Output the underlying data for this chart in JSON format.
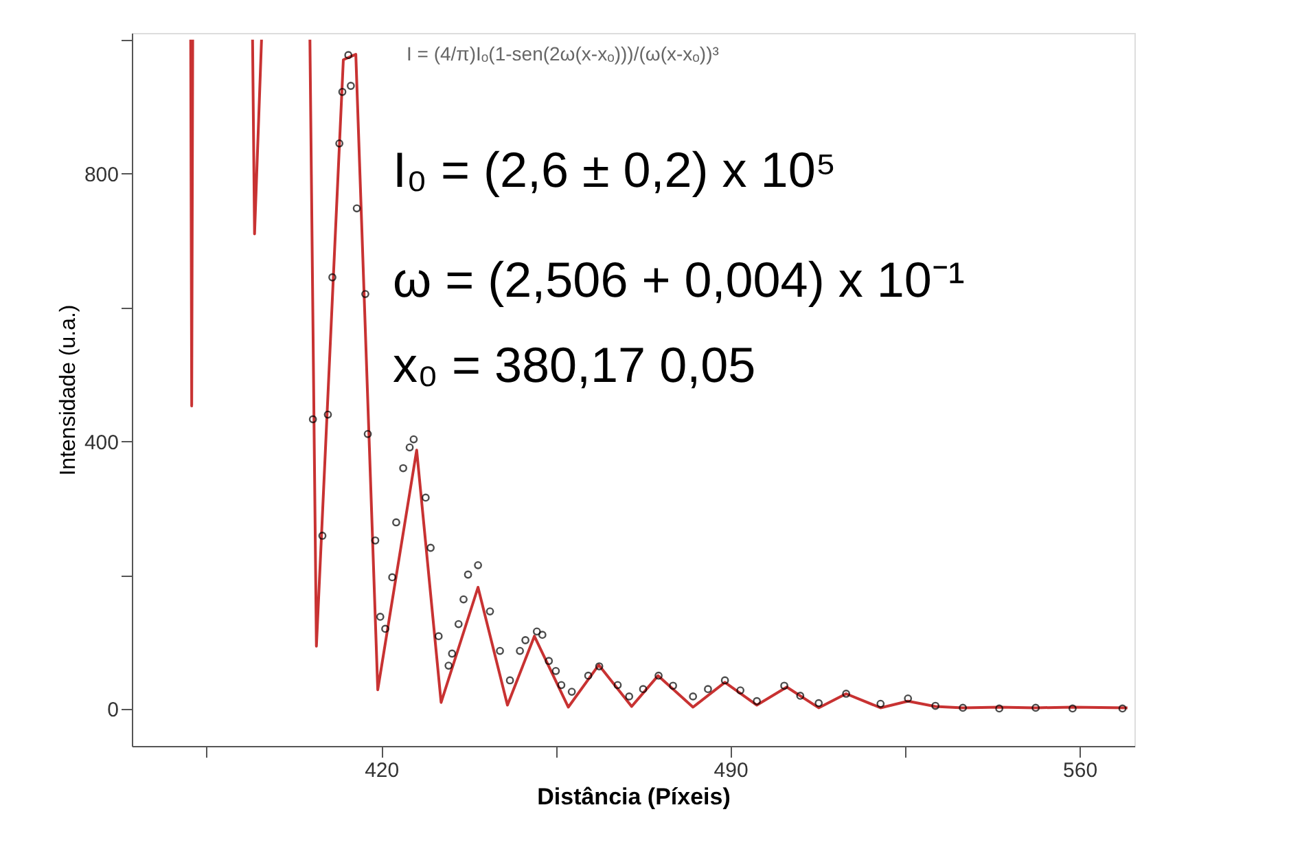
{
  "chart_data": {
    "type": "scatter",
    "xlabel": "Distância (Píxeis)",
    "ylabel": "Intensidade (u.a.)",
    "xlim": [
      370,
      571
    ],
    "ylim": [
      -55,
      1010
    ],
    "xticks": [
      {
        "value": 385,
        "label": null
      },
      420,
      {
        "value": 455,
        "label": null
      },
      490,
      {
        "value": 525,
        "label": null
      },
      560
    ],
    "yticks": [
      0,
      {
        "value": 200,
        "label": null
      },
      400,
      {
        "value": 600,
        "label": null
      },
      800,
      {
        "value": 1000,
        "label": null
      }
    ],
    "grid": false,
    "annotations": [
      "I = (4/π)Iₒ(1-sen(2ω(x-xₒ)))/(ω(x-xₒ))³",
      "I₀ = (2,6 ± 0,2) x 10⁵",
      "ω = (2,506 + 0,004) x 10⁻¹",
      "x₀ = 380,17  0,05"
    ],
    "series": [
      {
        "type": "line",
        "color": "#c83232",
        "line_style": "solid",
        "x": [
          381.8,
          382.0,
          382.2
        ],
        "values": [
          1000,
          453,
          1000
        ]
      },
      {
        "type": "line",
        "color": "#c83232",
        "line_style": "solid",
        "x": [
          394.2,
          394.6,
          396.0
        ],
        "values": [
          1000,
          710,
          1000
        ]
      },
      {
        "type": "line",
        "color": "#c83232",
        "line_style": "solid",
        "x": [
          405.7,
          407.0,
          412.4,
          414.9,
          419.3,
          427.1,
          432.0,
          439.4,
          445.3,
          450.7,
          457.5,
          463.6,
          470.2,
          475.5,
          482.5,
          488.9,
          495.3,
          501.3,
          507.7,
          513.2,
          520.1,
          525.6,
          531.1,
          536.6,
          543.9,
          551.2,
          558.6,
          569.6
        ],
        "values": [
          1000,
          94,
          970,
          978,
          29,
          387,
          10,
          182,
          6,
          109,
          3,
          66,
          4,
          50,
          3,
          40,
          6,
          33,
          2,
          23,
          2,
          12,
          4,
          2,
          3,
          2,
          3,
          2
        ]
      },
      {
        "type": "scatter",
        "color": "#000000",
        "marker": "circle",
        "x": [
          406.3,
          408.2,
          409.3,
          410.2,
          411.6,
          412.2,
          413.4,
          413.9,
          415.1,
          416.8,
          417.3,
          418.8,
          419.8,
          420.8,
          422.2,
          423.0,
          424.4,
          425.7,
          426.5,
          428.9,
          429.9,
          431.5,
          433.5,
          434.2,
          435.5,
          436.5,
          437.4,
          439.4,
          441.8,
          443.8,
          445.8,
          447.8,
          448.9,
          451.2,
          452.3,
          453.6,
          455.0,
          456.1,
          458.2,
          461.5,
          463.7,
          467.4,
          469.7,
          472.5,
          475.6,
          478.5,
          482.5,
          485.5,
          488.9,
          492.0,
          495.3,
          500.8,
          504.0,
          507.7,
          513.2,
          520.1,
          525.6,
          531.1,
          536.6,
          543.9,
          551.2,
          558.6,
          568.6
        ],
        "values": [
          433,
          259,
          440,
          645,
          845,
          922,
          977,
          931,
          748,
          620,
          411,
          252,
          138,
          120,
          197,
          279,
          360,
          391,
          403,
          316,
          241,
          109,
          65,
          83,
          127,
          164,
          201,
          215,
          146,
          87,
          43,
          87,
          103,
          116,
          111,
          72,
          57,
          36,
          26,
          50,
          64,
          36,
          19,
          30,
          50,
          35,
          19,
          30,
          43,
          28,
          12,
          35,
          20,
          9,
          23,
          8,
          16,
          5,
          2,
          1,
          2,
          1,
          1
        ]
      }
    ]
  }
}
